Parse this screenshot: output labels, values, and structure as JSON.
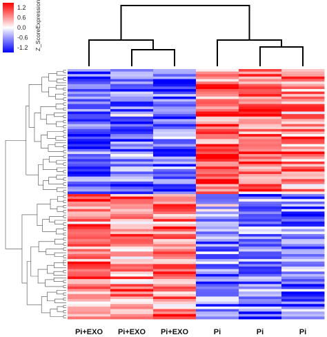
{
  "chart_data": {
    "type": "heatmap",
    "legend": {
      "title": "Z_ScoreExpression",
      "ticks": [
        "1.2",
        "0.6",
        "0.0",
        "-0.6",
        "-1.2"
      ],
      "tick_values": [
        1.2,
        0.6,
        0.0,
        -0.6,
        -1.2
      ],
      "range": [
        -1.5,
        1.5
      ],
      "colors": {
        "low": "#0000ff",
        "mid": "#ffffff",
        "high": "#ff0000"
      }
    },
    "columns": [
      "Pi+EXO",
      "Pi+EXO",
      "Pi+EXO",
      "Pi",
      "Pi",
      "Pi"
    ],
    "column_dendrogram": "((Pi+EXO_1,(Pi+EXO_2,Pi+EXO_3)),(Pi_1,(Pi_2,Pi_3)))",
    "row_count": 100,
    "row_blocks": [
      {
        "rows": 50,
        "means": [
          -0.9,
          -0.8,
          -0.9,
          0.9,
          0.8,
          0.7
        ]
      },
      {
        "rows": 50,
        "means": [
          0.8,
          0.7,
          0.8,
          -0.6,
          -0.8,
          -0.8
        ]
      }
    ],
    "row_dendrogram": "two main clusters (rows 1-50, rows 51-100)"
  }
}
